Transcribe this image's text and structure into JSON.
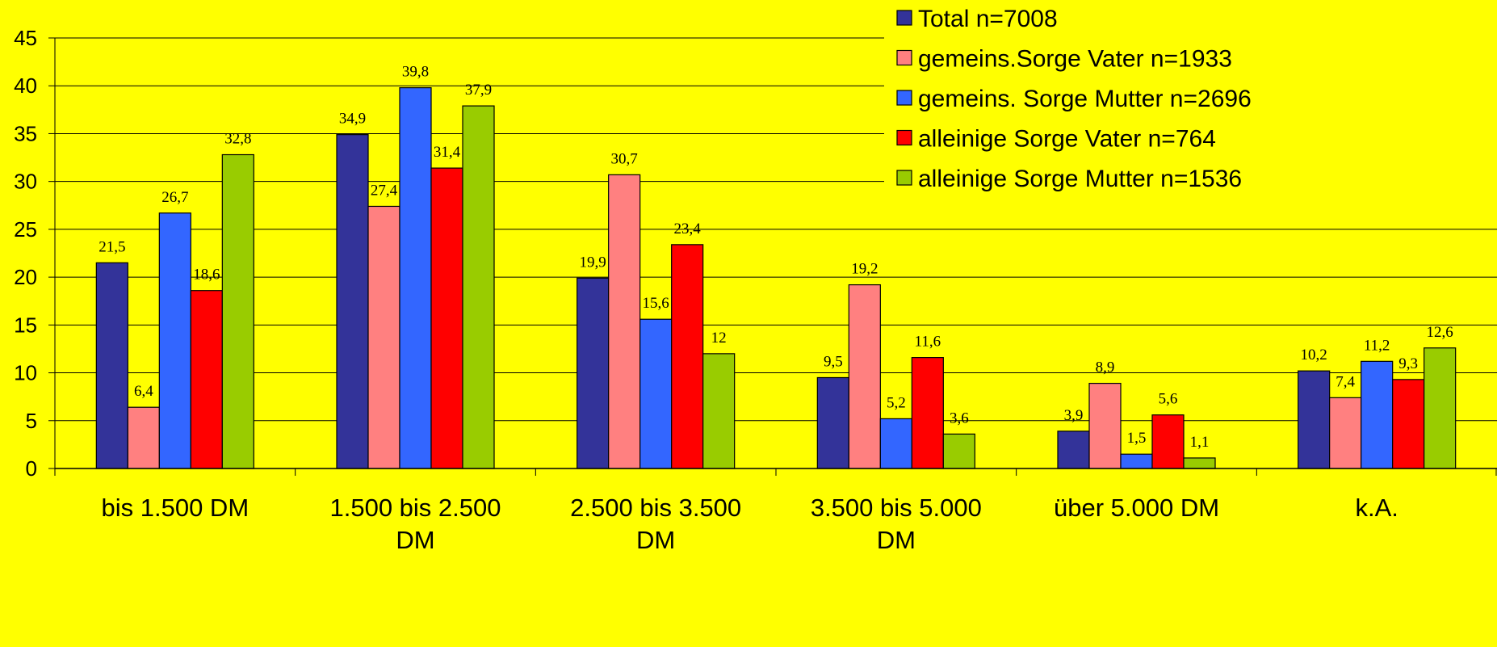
{
  "chart_data": {
    "type": "bar",
    "title": "",
    "xlabel": "",
    "ylabel": "",
    "ylim": [
      0,
      45
    ],
    "yticks": [
      0,
      5,
      10,
      15,
      20,
      25,
      30,
      35,
      40,
      45
    ],
    "grid": true,
    "legend_position": "top-right",
    "categories": [
      [
        "bis 1.500 DM"
      ],
      [
        "1.500 bis 2.500",
        "DM"
      ],
      [
        "2.500 bis 3.500",
        "DM"
      ],
      [
        "3.500 bis 5.000",
        "DM"
      ],
      [
        "über 5.000 DM"
      ],
      [
        "k.A."
      ]
    ],
    "series": [
      {
        "name": "Total n=7008",
        "color": "#333399",
        "values": [
          21.5,
          34.9,
          19.9,
          9.5,
          3.9,
          10.2
        ],
        "labels": [
          "21,5",
          "34,9",
          "19,9",
          "9,5",
          "3,9",
          "10,2"
        ]
      },
      {
        "name": "gemeins.Sorge Vater n=1933",
        "color": "#ff8080",
        "values": [
          6.4,
          27.4,
          30.7,
          19.2,
          8.9,
          7.4
        ],
        "labels": [
          "6,4",
          "27,4",
          "30,7",
          "19,2",
          "8,9",
          "7,4"
        ]
      },
      {
        "name": "gemeins. Sorge Mutter n=2696",
        "color": "#3366ff",
        "values": [
          26.7,
          39.8,
          15.6,
          5.2,
          1.5,
          11.2
        ],
        "labels": [
          "26,7",
          "39,8",
          "15,6",
          "5,2",
          "1,5",
          "11,2"
        ]
      },
      {
        "name": "alleinige Sorge Vater n=764",
        "color": "#ff0000",
        "values": [
          18.6,
          31.4,
          23.4,
          11.6,
          5.6,
          9.3
        ],
        "labels": [
          "18,6",
          "31,4",
          "23,4",
          "11,6",
          "5,6",
          "9,3"
        ]
      },
      {
        "name": "alleinige Sorge Mutter n=1536",
        "color": "#99cc00",
        "values": [
          32.8,
          37.9,
          12,
          3.6,
          1.1,
          12.6
        ],
        "labels": [
          "32,8",
          "37,9",
          "12",
          "3,6",
          "1,1",
          "12,6"
        ]
      }
    ]
  }
}
